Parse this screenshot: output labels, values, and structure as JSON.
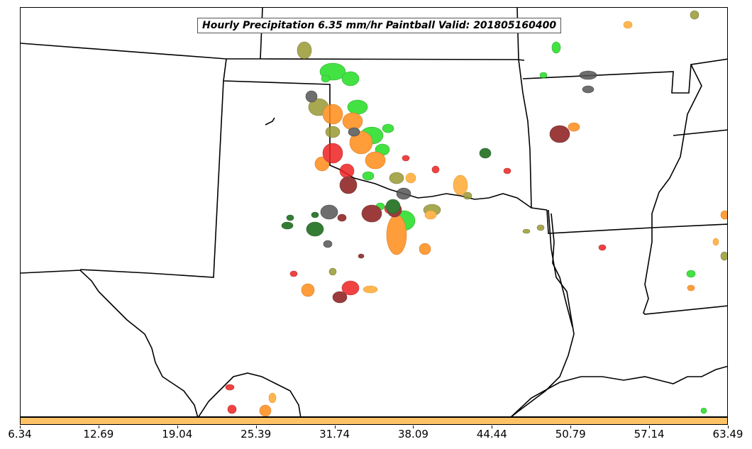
{
  "title": "Hourly Precipitation 6.35 mm/hr Paintball Valid: 201805160400",
  "colorbar": {
    "color": "#ffc266",
    "ticks": [
      "6.34",
      "12.69",
      "19.04",
      "25.39",
      "31.74",
      "38.09",
      "44.44",
      "50.79",
      "57.14",
      "63.49"
    ]
  },
  "colors": {
    "bright_green": "#22dd22",
    "dark_green": "#116611",
    "olive": "#999933",
    "orange": "#ff8c1a",
    "light_orange": "#ffaa33",
    "red": "#ee2222",
    "dark_red": "#8b1a1a",
    "gray": "#555555",
    "state_lines": "#000000"
  }
}
